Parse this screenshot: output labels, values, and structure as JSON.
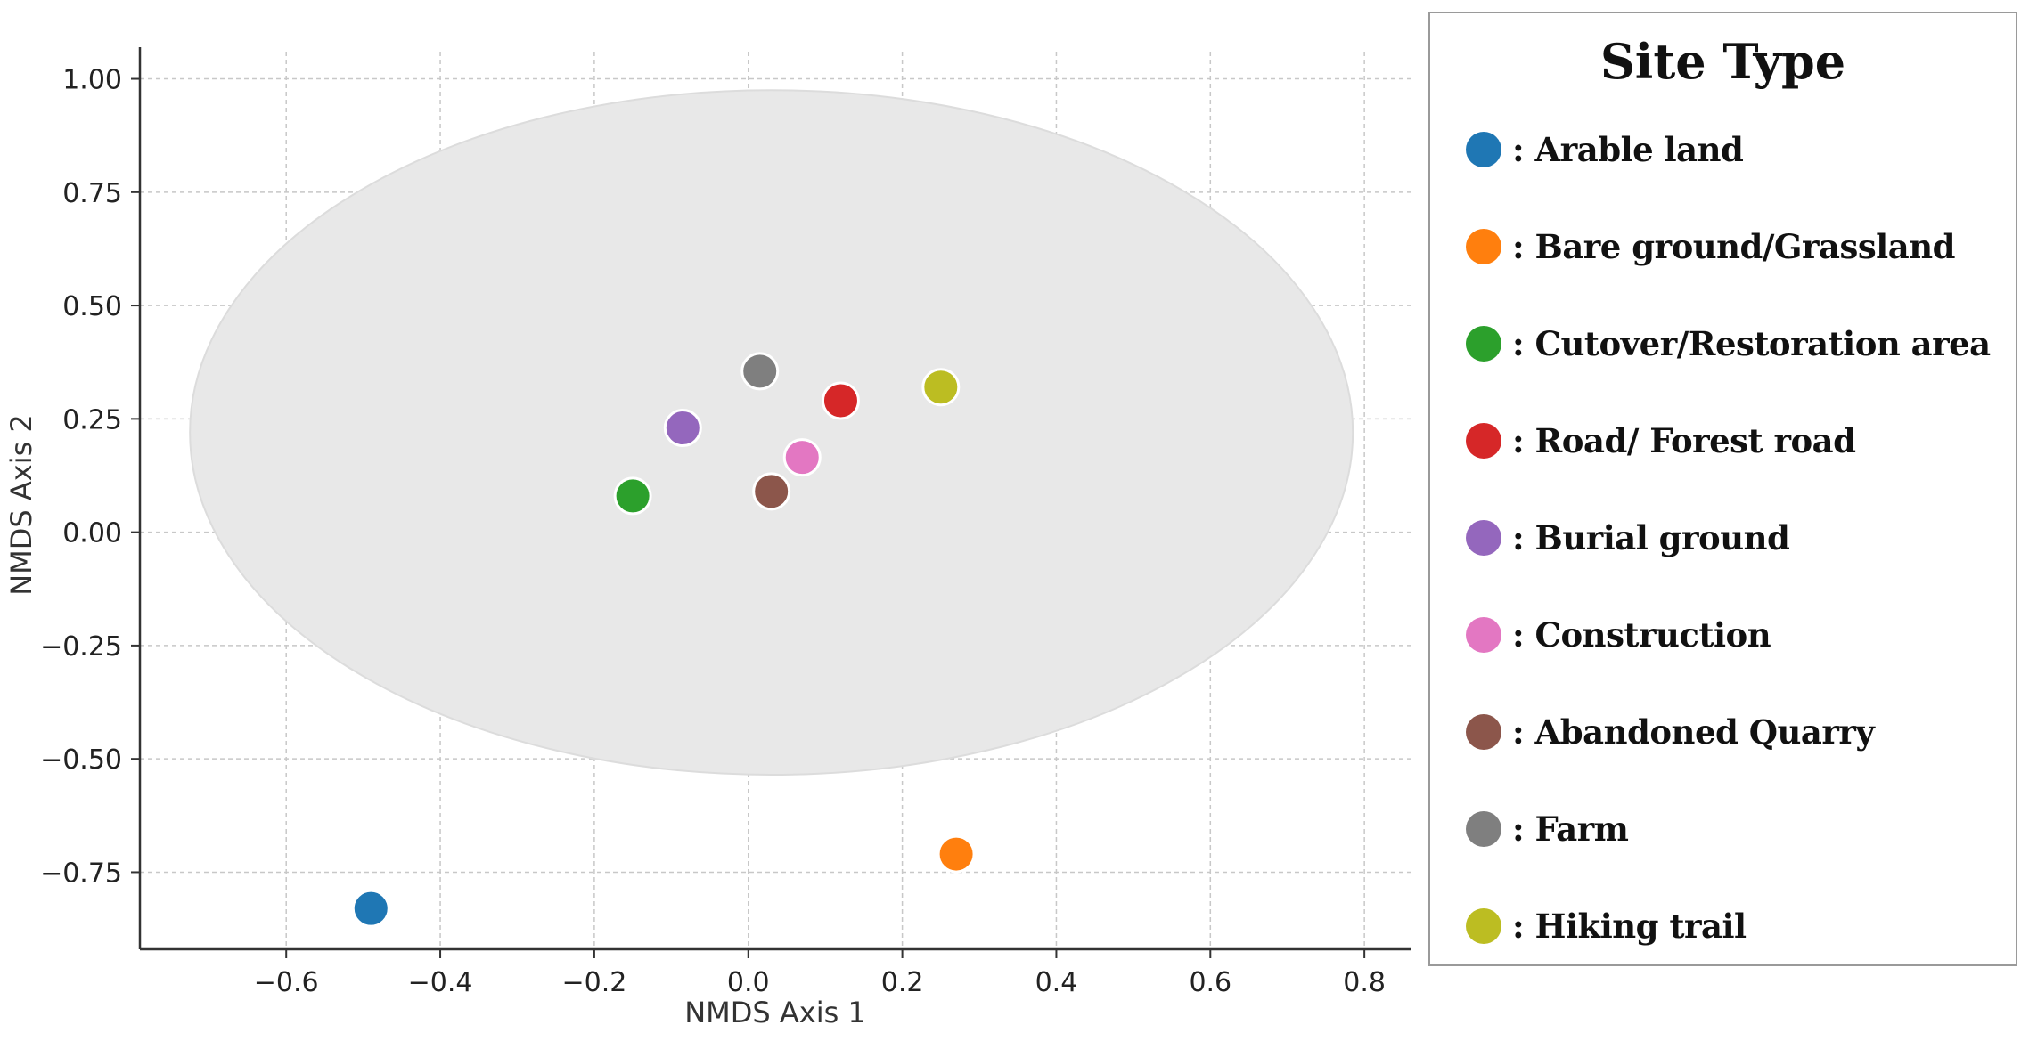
{
  "chart_data": {
    "type": "scatter",
    "xlabel": "NMDS Axis 1",
    "ylabel": "NMDS Axis 2",
    "xlim": [
      -0.79,
      0.86
    ],
    "ylim": [
      -0.92,
      1.06
    ],
    "xticks": [
      -0.6,
      -0.4,
      -0.2,
      0.0,
      0.2,
      0.4,
      0.6,
      0.8
    ],
    "xtick_labels": [
      "−0.6",
      "−0.4",
      "−0.2",
      "0.0",
      "0.2",
      "0.4",
      "0.6",
      "0.8"
    ],
    "yticks": [
      1.0,
      0.75,
      0.5,
      0.25,
      0.0,
      -0.25,
      -0.5,
      -0.75
    ],
    "ytick_labels": [
      "1.00",
      "0.75",
      "0.50",
      "0.25",
      "0.00",
      "−0.25",
      "−0.50",
      "−0.75"
    ],
    "grid": true,
    "ellipse": {
      "center": [
        0.03,
        0.22
      ],
      "width": 1.51,
      "height": 1.51,
      "color": "#e8e8e8"
    },
    "legend_title": "Site Type",
    "legend_position": "right",
    "points": [
      {
        "label": ": Arable land",
        "x": -0.49,
        "y": -0.83,
        "color": "#1f77b4"
      },
      {
        "label": ": Bare ground/Grassland",
        "x": 0.27,
        "y": -0.71,
        "color": "#ff7f0e"
      },
      {
        "label": ": Cutover/Restoration  area",
        "x": -0.15,
        "y": 0.08,
        "color": "#2ca02c"
      },
      {
        "label": ": Road/ Forest road",
        "x": 0.12,
        "y": 0.29,
        "color": "#d62728"
      },
      {
        "label": ": Burial ground",
        "x": -0.085,
        "y": 0.23,
        "color": "#9467bd"
      },
      {
        "label": ": Construction",
        "x": 0.07,
        "y": 0.165,
        "color": "#e377c2"
      },
      {
        "label": ": Abandoned Quarry",
        "x": 0.03,
        "y": 0.09,
        "color": "#8c564b"
      },
      {
        "label": ": Farm",
        "x": 0.015,
        "y": 0.355,
        "color": "#7f7f7f"
      },
      {
        "label": ": Hiking trail",
        "x": 0.25,
        "y": 0.32,
        "color": "#bcbd22"
      }
    ]
  }
}
